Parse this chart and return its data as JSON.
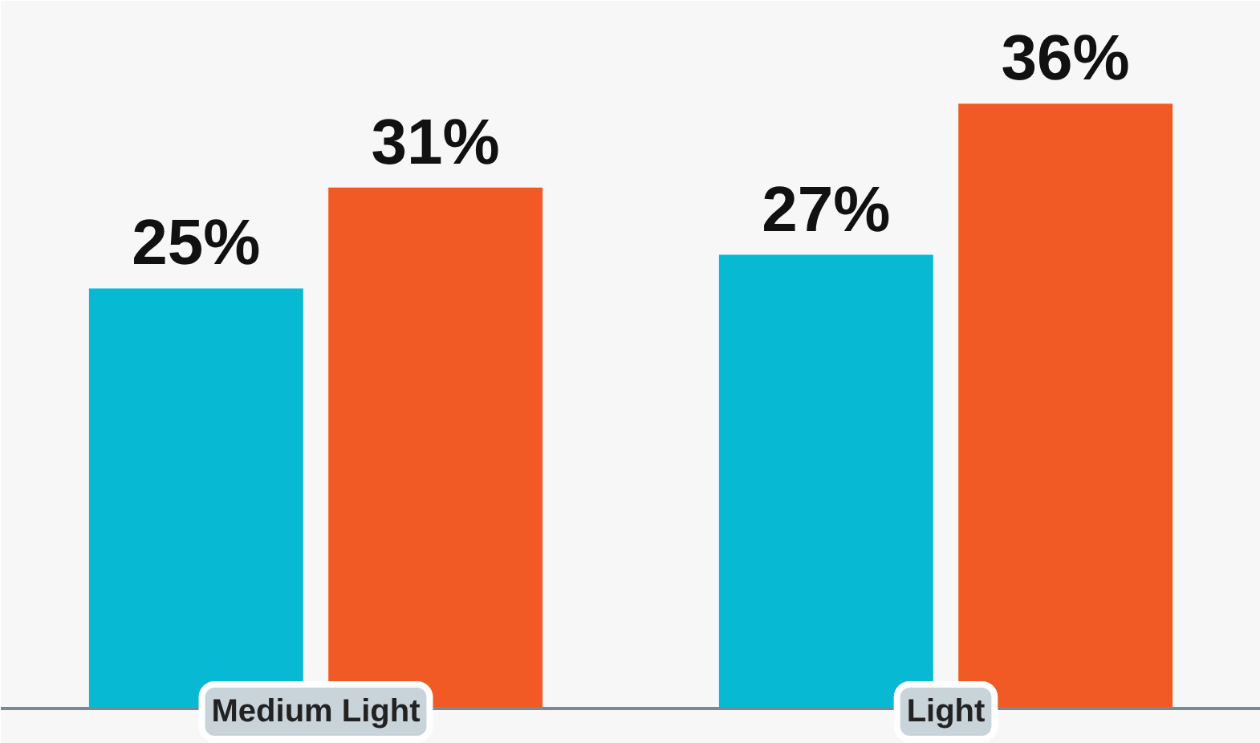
{
  "chart_data": {
    "type": "bar",
    "categories": [
      "Medium Light",
      "Light"
    ],
    "series": [
      {
        "color": "#08b9d3",
        "values": [
          25,
          27
        ],
        "value_labels": [
          "25%",
          "27%"
        ]
      },
      {
        "color": "#f15a24",
        "values": [
          31,
          36
        ],
        "value_labels": [
          "31%",
          "36%"
        ]
      }
    ],
    "grid": false
  }
}
